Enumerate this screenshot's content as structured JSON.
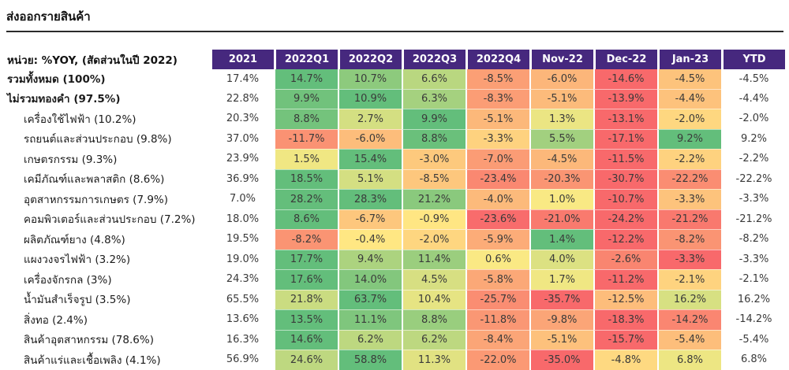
{
  "title": "ส่งออกรายสินค้า",
  "chart_data": {
    "type": "heatmap",
    "unit_label": "หน่วย: %YOY, (สัดส่วนในปี 2022)",
    "columns": [
      "2021",
      "2022Q1",
      "2022Q2",
      "2022Q3",
      "2022Q4",
      "Nov-22",
      "Dec-22",
      "Jan-23",
      "YTD"
    ],
    "heatmap_col_indices": [
      1,
      2,
      3,
      4,
      5,
      6,
      7
    ],
    "value_format": "percent_1dp",
    "legend": "values are %YOY; share of 2022 exports shown in row labels",
    "colors": {
      "header_bg": "#46287E",
      "header_text": "#FFFFFF",
      "scale_negative_min": "#F8696B",
      "scale_zero": "#FFEB84",
      "scale_positive_max": "#63BE7B"
    },
    "color_scale_scope": "per-row, yellow anchored at 0, red at row min, green at row max",
    "rows": [
      {
        "label": "รวมทั้งหมด (100%)",
        "bold": true,
        "indent": false,
        "values": [
          17.4,
          14.7,
          10.7,
          6.6,
          -8.5,
          -6.0,
          -14.6,
          -4.5,
          -4.5
        ]
      },
      {
        "label": "ไม่รวมทองคำ (97.5%)",
        "bold": true,
        "indent": false,
        "values": [
          22.8,
          9.9,
          10.9,
          6.3,
          -8.3,
          -5.1,
          -13.9,
          -4.4,
          -4.4
        ]
      },
      {
        "label": "เครื่องใช้ไฟฟ้า (10.2%)",
        "bold": false,
        "indent": true,
        "values": [
          20.3,
          8.8,
          2.7,
          9.9,
          -5.1,
          1.3,
          -13.1,
          -2.0,
          -2.0
        ]
      },
      {
        "label": "รถยนต์และส่วนประกอบ (9.8%)",
        "bold": false,
        "indent": true,
        "values": [
          37.0,
          -11.7,
          -6.0,
          8.8,
          -3.3,
          5.5,
          -17.1,
          9.2,
          9.2
        ]
      },
      {
        "label": "เกษตรกรรม (9.3%)",
        "bold": false,
        "indent": true,
        "values": [
          23.9,
          1.5,
          15.4,
          -3.0,
          -7.0,
          -4.5,
          -11.5,
          -2.2,
          -2.2
        ]
      },
      {
        "label": "เคมีภัณฑ์และพลาสติก (8.6%)",
        "bold": false,
        "indent": true,
        "values": [
          36.9,
          18.5,
          5.1,
          -8.5,
          -23.4,
          -20.3,
          -30.7,
          -22.2,
          -22.2
        ]
      },
      {
        "label": "อุตสาหกรรมการเกษตร (7.9%)",
        "bold": false,
        "indent": true,
        "values": [
          7.0,
          28.2,
          28.3,
          21.2,
          -4.0,
          1.0,
          -10.7,
          -3.3,
          -3.3
        ]
      },
      {
        "label": "คอมพิวเตอร์และส่วนประกอบ (7.2%)",
        "bold": false,
        "indent": true,
        "values": [
          18.0,
          8.6,
          -6.7,
          -0.9,
          -23.6,
          -21.0,
          -24.2,
          -21.2,
          -21.2
        ]
      },
      {
        "label": "ผลิตภัณฑ์ยาง (4.8%)",
        "bold": false,
        "indent": true,
        "values": [
          19.5,
          -8.2,
          -0.4,
          -2.0,
          -5.9,
          1.4,
          -12.2,
          -8.2,
          -8.2
        ]
      },
      {
        "label": "แผงวงจรไฟฟ้า (3.2%)",
        "bold": false,
        "indent": true,
        "values": [
          19.0,
          17.7,
          9.4,
          11.4,
          0.6,
          4.0,
          -2.6,
          -3.3,
          -3.3
        ]
      },
      {
        "label": "เครื่องจักรกล (3%)",
        "bold": false,
        "indent": true,
        "values": [
          24.3,
          17.6,
          14.0,
          4.5,
          -5.8,
          1.7,
          -11.2,
          -2.1,
          -2.1
        ]
      },
      {
        "label": "น้ำมันสำเร็จรูป (3.5%)",
        "bold": false,
        "indent": true,
        "values": [
          65.5,
          21.8,
          63.7,
          10.4,
          -25.7,
          -35.7,
          -12.5,
          16.2,
          16.2
        ]
      },
      {
        "label": "สิ่งทอ (2.4%)",
        "bold": false,
        "indent": true,
        "values": [
          13.6,
          13.5,
          11.1,
          8.8,
          -11.8,
          -9.8,
          -18.3,
          -14.2,
          -14.2
        ]
      },
      {
        "label": "สินค้าอุตสาหกรรม (78.6%)",
        "bold": false,
        "indent": true,
        "values": [
          16.3,
          14.6,
          6.2,
          6.2,
          -8.4,
          -5.1,
          -15.7,
          -5.4,
          -5.4
        ]
      },
      {
        "label": "สินค้าแร่และเชื้อเพลิง (4.1%)",
        "bold": false,
        "indent": true,
        "values": [
          56.9,
          24.6,
          58.8,
          11.3,
          -22.0,
          -35.0,
          -4.8,
          6.8,
          6.8
        ]
      }
    ]
  }
}
